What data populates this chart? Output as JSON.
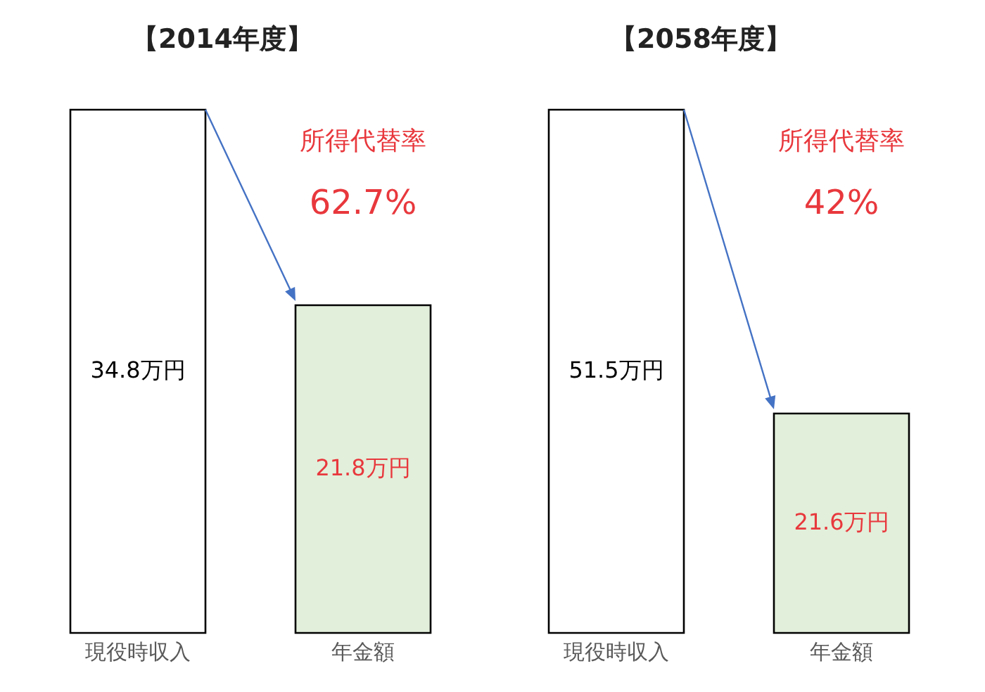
{
  "chart_data": [
    {
      "type": "bar",
      "title": "【2014年度】",
      "categories": [
        "現役時収入",
        "年金額"
      ],
      "values": [
        34.8,
        21.8
      ],
      "colors": [
        "#ffffff",
        "#e2efda"
      ],
      "value_labels": [
        "34.8万円",
        "21.8万円"
      ],
      "annotations": [
        "所得代替率",
        "62.7%"
      ]
    },
    {
      "type": "bar",
      "title": "【2058年度】",
      "categories": [
        "現役時収入",
        "年金額"
      ],
      "values": [
        51.5,
        21.6
      ],
      "colors": [
        "#ffffff",
        "#e2efda"
      ],
      "value_labels": [
        "51.5万円",
        "21.6万円"
      ],
      "annotations": [
        "所得代替率",
        "42%"
      ]
    }
  ]
}
